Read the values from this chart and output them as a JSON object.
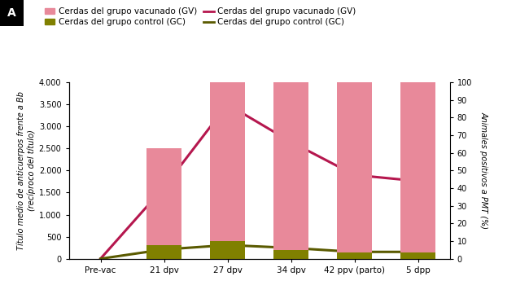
{
  "categories": [
    "Pre-vac",
    "21 dpv",
    "27 dpv",
    "34 dpv",
    "42 ppv (parto)",
    "5 dpp"
  ],
  "bar_GV_pct": [
    0,
    62.5,
    100,
    100,
    100,
    100
  ],
  "bar_GC_pct": [
    0,
    7.5,
    10,
    5,
    3.75,
    3.75
  ],
  "line_GV": [
    0,
    1620,
    3500,
    2650,
    1900,
    1760
  ],
  "line_GC": [
    0,
    210,
    310,
    245,
    155,
    155
  ],
  "bar_GV_color": "#e8899a",
  "bar_GC_color": "#808000",
  "line_GV_color": "#b5174e",
  "line_GC_color": "#5a5a00",
  "ylim_left": [
    0,
    4000
  ],
  "ylim_right": [
    0,
    100
  ],
  "yticks_left": [
    0,
    500,
    1000,
    1500,
    2000,
    2500,
    3000,
    3500,
    4000
  ],
  "yticks_right": [
    0,
    10,
    20,
    30,
    40,
    50,
    60,
    70,
    80,
    90,
    100
  ],
  "ylabel_left": "Título medio de anticuerpos frente a Bb\n(recíproco del título)",
  "ylabel_right": "Animales positivos a PMT (%)",
  "legend_bar_GV": "Cerdas del grupo vacunado (GV)",
  "legend_bar_GC": "Cerdas del grupo control (GC)",
  "legend_line_GV": "Cerdas del grupo vacunado (GV)",
  "legend_line_GC": "Cerdas del grupo control (GC)",
  "panel_label": "A",
  "star_indices_GV": [
    1,
    2,
    3,
    4,
    5
  ],
  "background_color": "#ffffff",
  "bar_width": 0.55
}
